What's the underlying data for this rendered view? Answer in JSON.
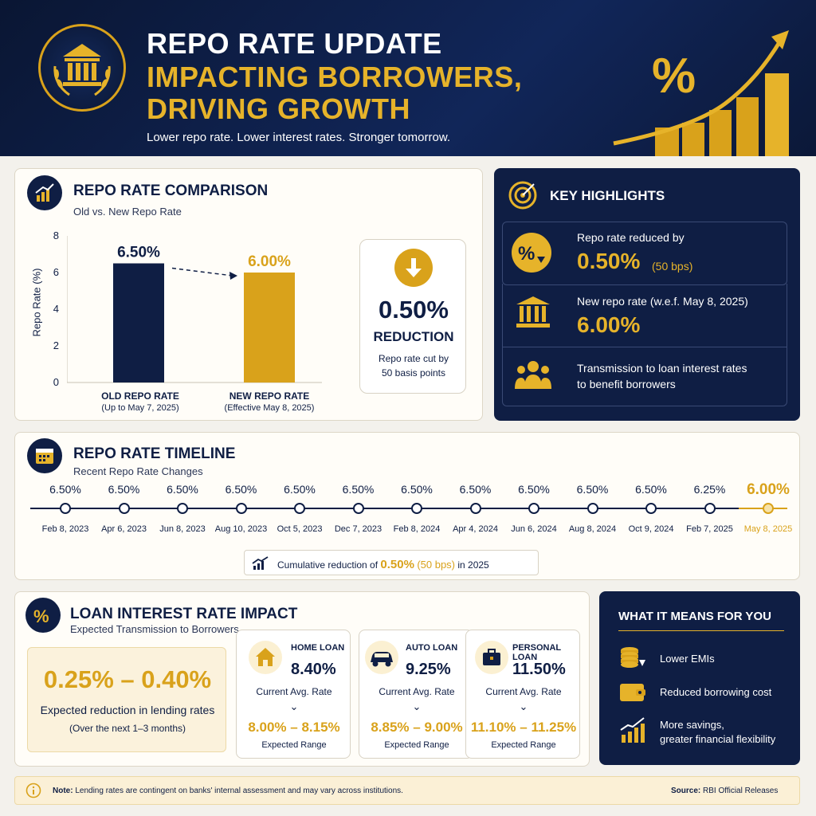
{
  "header": {
    "title_line1": "REPO RATE UPDATE",
    "title_line2": "IMPACTING BORROWERS,",
    "title_line3": "DRIVING GROWTH",
    "subtitle": "Lower repo rate. Lower interest rates. Stronger tomorrow.",
    "emblem_icon": "bank-building-icon",
    "graphic_icon": "percent-growth-chart-icon"
  },
  "colors": {
    "navy": "#0f1e44",
    "gold": "#d9a21b",
    "bg": "#f3f1ec"
  },
  "comparison": {
    "title": "REPO RATE COMPARISON",
    "subtitle": "Old vs. New Repo Rate",
    "icon": "bar-chart-icon",
    "ylabel": "Repo Rate (%)",
    "ticks": [
      "8",
      "6",
      "4",
      "2",
      "0"
    ],
    "old_value": "6.50%",
    "new_value": "6.00%",
    "old_label": "OLD REPO RATE",
    "old_sub": "(Up to May 7, 2025)",
    "new_label": "NEW REPO RATE",
    "new_sub": "(Effective May 8, 2025)",
    "reduction_value": "0.50%",
    "reduction_label": "REDUCTION",
    "reduction_note_1": "Repo rate cut by",
    "reduction_note_2": "50 basis points"
  },
  "chart_data": {
    "type": "bar",
    "categories": [
      "OLD REPO RATE",
      "NEW REPO RATE"
    ],
    "values": [
      6.5,
      6.0
    ],
    "ylabel": "Repo Rate (%)",
    "ylim": [
      0,
      8
    ]
  },
  "highlights": {
    "title": "KEY HIGHLIGHTS",
    "icon": "target-icon",
    "item1_text": "Repo rate reduced by",
    "item1_value": "0.50%",
    "item1_note": "(50 bps)",
    "item2_text": "New repo rate (w.e.f. May 8, 2025)",
    "item2_value": "6.00%",
    "item3_text_1": "Transmission to loan interest rates",
    "item3_text_2": "to benefit borrowers"
  },
  "timeline": {
    "title": "REPO RATE TIMELINE",
    "subtitle": "Recent Repo Rate Changes",
    "icon": "calendar-icon",
    "rates": [
      "6.50%",
      "6.50%",
      "6.50%",
      "6.50%",
      "6.50%",
      "6.50%",
      "6.50%",
      "6.50%",
      "6.50%",
      "6.50%",
      "6.50%",
      "6.25%",
      "6.00%"
    ],
    "dates": [
      "Feb 8, 2023",
      "Apr 6, 2023",
      "Jun 8, 2023",
      "Aug 10, 2023",
      "Oct 5, 2023",
      "Dec 7, 2023",
      "Feb 8, 2024",
      "Apr 4, 2024",
      "Jun 6, 2024",
      "Aug 8, 2024",
      "Oct 9, 2024",
      "Feb 7, 2025",
      "May 8, 2025"
    ],
    "cumulative_prefix": "Cumulative reduction of",
    "cumulative_value": "0.50%",
    "cumulative_bps": "(50 bps)",
    "cumulative_suffix": "in 2025"
  },
  "impact": {
    "title": "LOAN INTEREST RATE IMPACT",
    "subtitle": "Expected Transmission to Borrowers",
    "icon": "percent-icon",
    "range": "0.25% – 0.40%",
    "range_label": "Expected reduction in lending rates",
    "range_note": "(Over the next 1–3 months)",
    "current_label": "Current Avg. Rate",
    "expected_label": "Expected Range",
    "loans": [
      {
        "name": "HOME LOAN",
        "rate": "8.40%",
        "range": "8.00% – 8.15%",
        "icon": "house-icon"
      },
      {
        "name": "AUTO LOAN",
        "rate": "9.25%",
        "range": "8.85% – 9.00%",
        "icon": "car-icon"
      },
      {
        "name": "PERSONAL LOAN",
        "rate": "11.50%",
        "range": "11.10% – 11.25%",
        "icon": "briefcase-icon"
      }
    ]
  },
  "means": {
    "title": "WHAT IT MEANS FOR YOU",
    "item1": "Lower EMIs",
    "item2": "Reduced borrowing cost",
    "item3_1": "More savings,",
    "item3_2": "greater financial flexibility"
  },
  "footer": {
    "note_label": "Note:",
    "note_text": "Lending rates are contingent on banks' internal assessment and may vary across institutions.",
    "source_label": "Source:",
    "source_text": "RBI Official Releases"
  }
}
